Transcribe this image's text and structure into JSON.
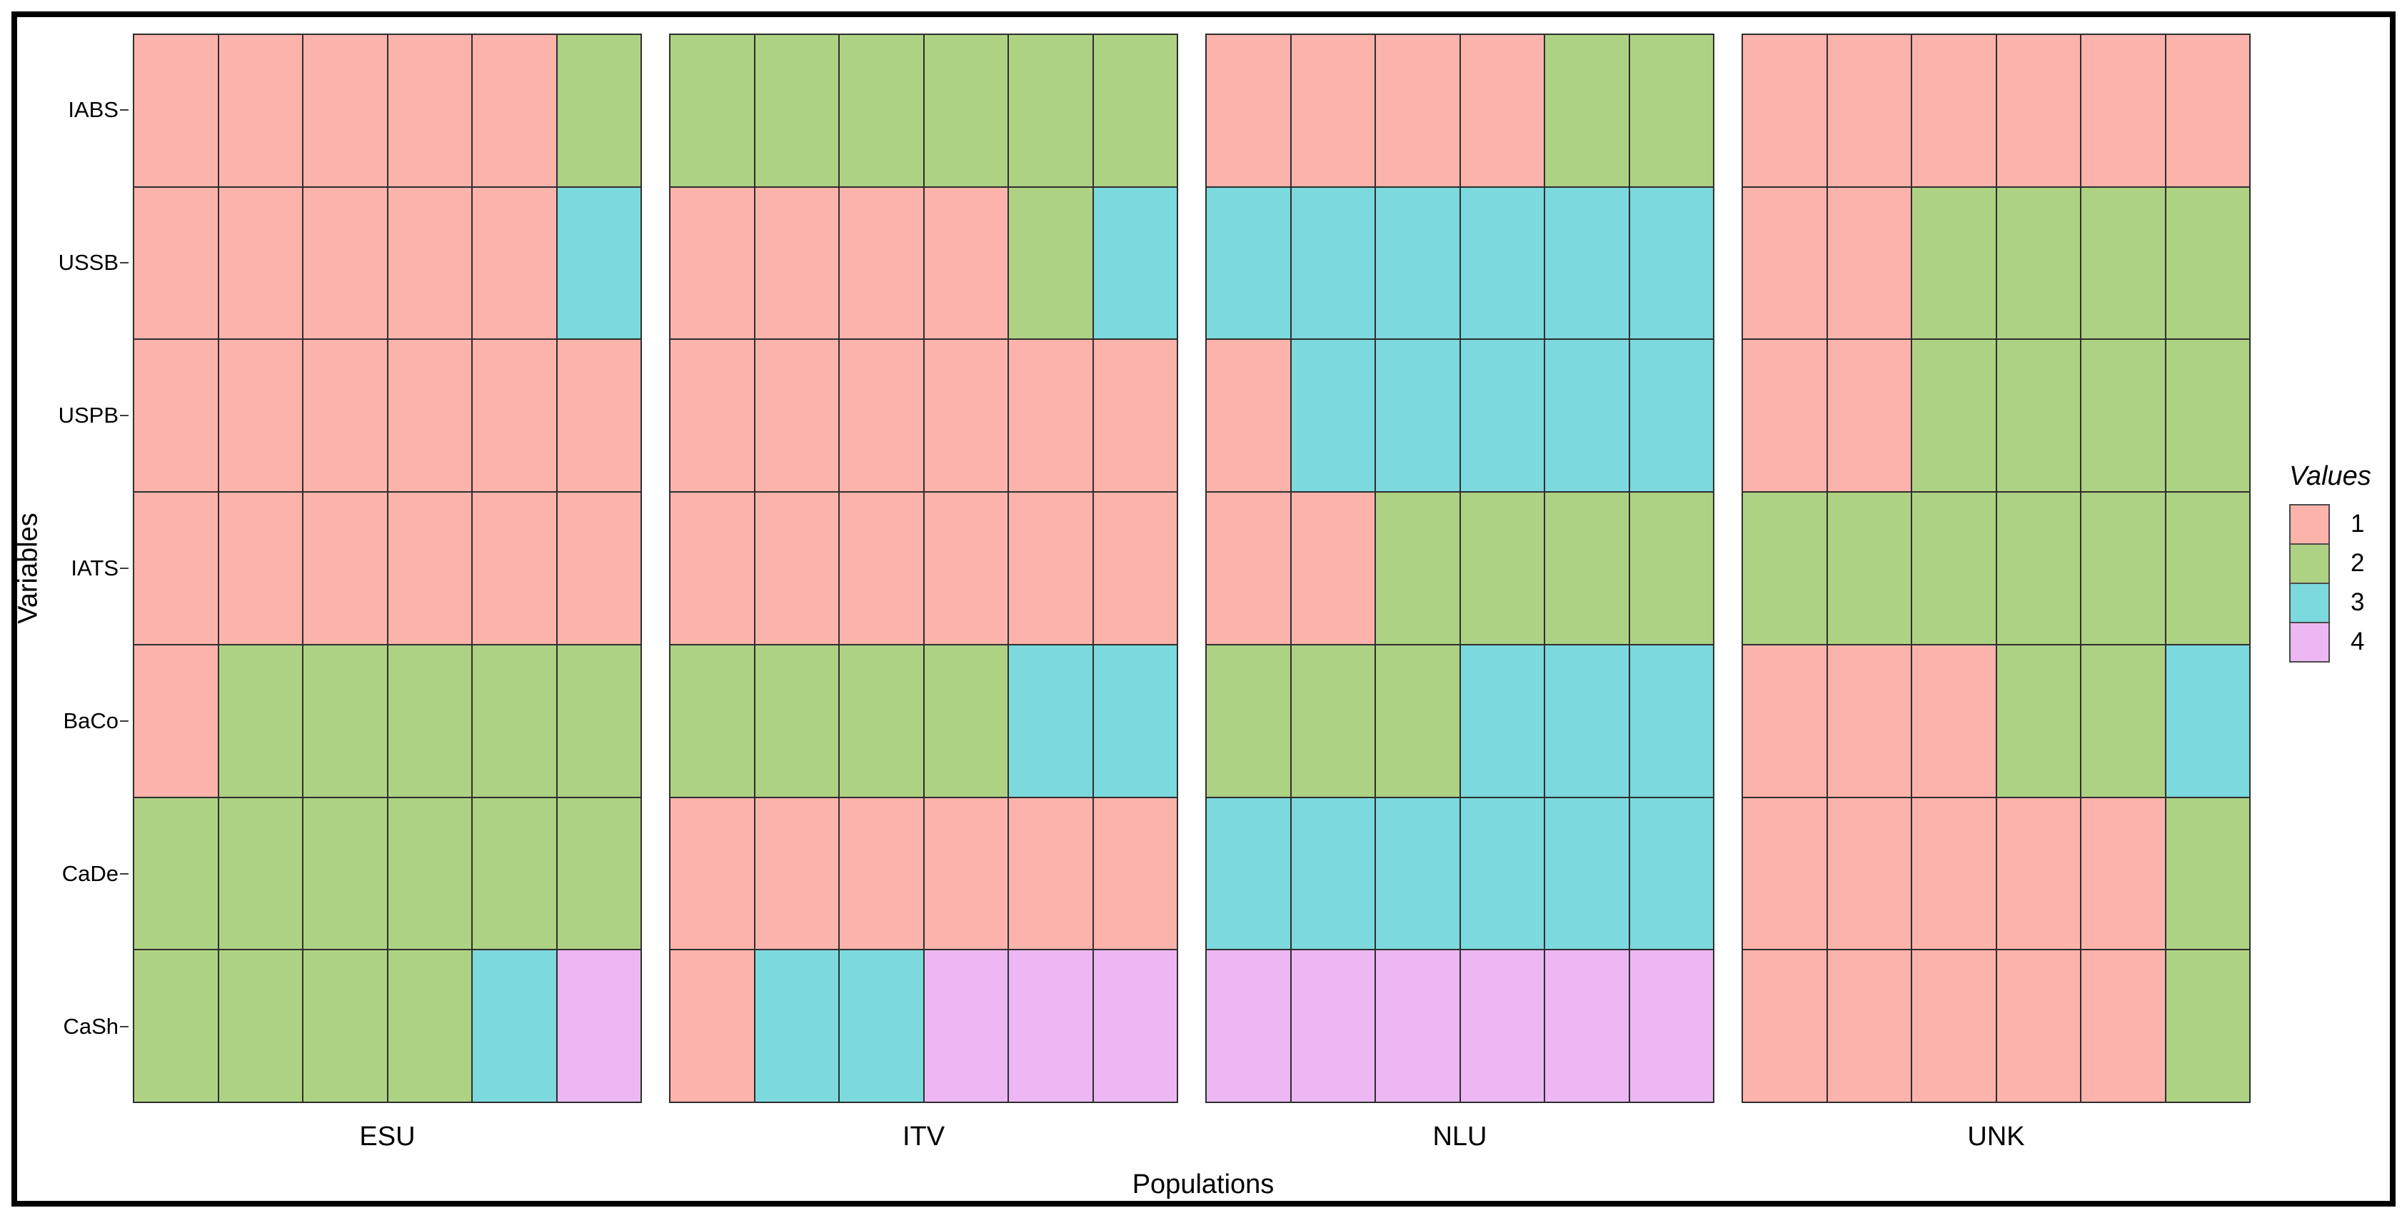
{
  "figure": {
    "xlabel": "Populations",
    "ylabel": "Variables"
  },
  "legend": {
    "title": "Values"
  },
  "chart_data": {
    "type": "heatmap",
    "title": "",
    "xlabel": "Populations",
    "ylabel": "Variables",
    "legend_title": "Values",
    "legend_position": "right",
    "grid": "cell-borders",
    "rows": [
      "IABS",
      "USSB",
      "USPB",
      "IATS",
      "BaCo",
      "CaDe",
      "CaSh"
    ],
    "values_legend": [
      {
        "label": "1",
        "color": "#FBB3AB"
      },
      {
        "label": "2",
        "color": "#AED283"
      },
      {
        "label": "3",
        "color": "#7CD9DE"
      },
      {
        "label": "4",
        "color": "#ECB7F3"
      }
    ],
    "facets": [
      {
        "label": "ESU",
        "columns": 6,
        "series": {
          "IABS": [
            1,
            1,
            1,
            1,
            1,
            2
          ],
          "USSB": [
            1,
            1,
            1,
            1,
            1,
            3
          ],
          "USPB": [
            1,
            1,
            1,
            1,
            1,
            1
          ],
          "IATS": [
            1,
            1,
            1,
            1,
            1,
            1
          ],
          "BaCo": [
            1,
            2,
            2,
            2,
            2,
            2
          ],
          "CaDe": [
            2,
            2,
            2,
            2,
            2,
            2
          ],
          "CaSh": [
            2,
            2,
            2,
            2,
            3,
            4
          ]
        }
      },
      {
        "label": "ITV",
        "columns": 6,
        "series": {
          "IABS": [
            2,
            2,
            2,
            2,
            2,
            2
          ],
          "USSB": [
            1,
            1,
            1,
            1,
            2,
            3
          ],
          "USPB": [
            1,
            1,
            1,
            1,
            1,
            1
          ],
          "IATS": [
            1,
            1,
            1,
            1,
            1,
            1
          ],
          "BaCo": [
            2,
            2,
            2,
            2,
            3,
            3
          ],
          "CaDe": [
            1,
            1,
            1,
            1,
            1,
            1
          ],
          "CaSh": [
            1,
            3,
            3,
            4,
            4,
            4
          ]
        }
      },
      {
        "label": "NLU",
        "columns": 6,
        "series": {
          "IABS": [
            1,
            1,
            1,
            1,
            2,
            2
          ],
          "USSB": [
            3,
            3,
            3,
            3,
            3,
            3
          ],
          "USPB": [
            1,
            3,
            3,
            3,
            3,
            3
          ],
          "IATS": [
            1,
            1,
            2,
            2,
            2,
            2
          ],
          "BaCo": [
            2,
            2,
            2,
            3,
            3,
            3
          ],
          "CaDe": [
            3,
            3,
            3,
            3,
            3,
            3
          ],
          "CaSh": [
            4,
            4,
            4,
            4,
            4,
            4
          ]
        }
      },
      {
        "label": "UNK",
        "columns": 6,
        "series": {
          "IABS": [
            1,
            1,
            1,
            1,
            1,
            1
          ],
          "USSB": [
            1,
            1,
            2,
            2,
            2,
            2
          ],
          "USPB": [
            1,
            1,
            2,
            2,
            2,
            2
          ],
          "IATS": [
            2,
            2,
            2,
            2,
            2,
            2
          ],
          "BaCo": [
            1,
            1,
            1,
            2,
            2,
            3
          ],
          "CaDe": [
            1,
            1,
            1,
            1,
            1,
            2
          ],
          "CaSh": [
            1,
            1,
            1,
            1,
            1,
            2
          ]
        }
      }
    ]
  }
}
